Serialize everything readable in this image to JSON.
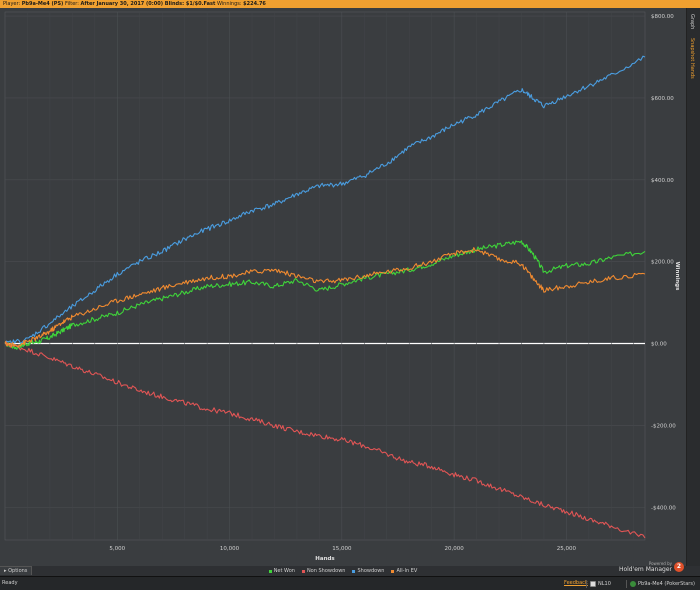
{
  "topbar": {
    "player_label": "Player:",
    "player_value": "Pb9a-Me4 (PS)",
    "filter_label": "Filter:",
    "filter_value": "After January 30, 2017 (0:00) Blinds: $1/$0.Fast",
    "winnings_label": "Winnings:",
    "winnings_value": "$224.76",
    "bar_color": "#f0a030"
  },
  "side_tabs": [
    "Graph",
    "Snapshot Hands"
  ],
  "options_label": "Options",
  "branding": {
    "small": "Powered by",
    "name": "Hold'em Manager",
    "badge": "2"
  },
  "status": {
    "ready": "Ready",
    "feedback": "Feedback",
    "limit": "NL10",
    "player": "Pb9a-Me4 (PokerStars)"
  },
  "chart_data": {
    "type": "line",
    "xlabel": "Hands",
    "ylabel": "Winnings",
    "xlim": [
      0,
      28500
    ],
    "ylim": [
      -480,
      810
    ],
    "x_ticks": [
      5000,
      10000,
      15000,
      20000,
      25000
    ],
    "x_tick_labels": [
      "5,000",
      "10,000",
      "15,000",
      "20,000",
      "25,000"
    ],
    "y_ticks": [
      800,
      600,
      400,
      200,
      0,
      -200,
      -400
    ],
    "y_tick_labels": [
      "$800.00",
      "$600.00",
      "$400.00",
      "$200.00",
      "$0.00",
      "-$200.00",
      "-$400.00"
    ],
    "grid": true,
    "legend_position": "bottom-center",
    "series": [
      {
        "name": "Net Won",
        "color": "#3fd43a",
        "x": [
          0,
          500,
          1000,
          1500,
          2000,
          2500,
          3000,
          4000,
          5000,
          6000,
          7000,
          8000,
          9000,
          10000,
          11000,
          12000,
          13000,
          14000,
          15000,
          16000,
          17000,
          18000,
          19000,
          20000,
          21000,
          22000,
          23000,
          23500,
          24000,
          25000,
          26000,
          27000,
          28500
        ],
        "y": [
          0,
          -10,
          0,
          5,
          15,
          30,
          45,
          60,
          75,
          95,
          110,
          125,
          140,
          145,
          150,
          140,
          155,
          130,
          145,
          160,
          170,
          180,
          195,
          215,
          230,
          240,
          250,
          220,
          175,
          190,
          195,
          210,
          225
        ]
      },
      {
        "name": "Non Showdown",
        "color": "#e05555",
        "x": [
          0,
          1000,
          2000,
          3000,
          4000,
          5000,
          6000,
          7000,
          8000,
          9000,
          10000,
          11000,
          12000,
          13000,
          14000,
          15000,
          16000,
          17000,
          18000,
          19000,
          20000,
          21000,
          22000,
          23000,
          24000,
          25000,
          26000,
          27000,
          28500
        ],
        "y": [
          0,
          -15,
          -35,
          -55,
          -75,
          -95,
          -115,
          -130,
          -145,
          -160,
          -170,
          -185,
          -200,
          -215,
          -225,
          -235,
          -250,
          -270,
          -290,
          -300,
          -320,
          -335,
          -355,
          -375,
          -395,
          -410,
          -430,
          -445,
          -475
        ]
      },
      {
        "name": "Showdown",
        "color": "#4a9de0",
        "x": [
          0,
          1000,
          2000,
          3000,
          4000,
          5000,
          6000,
          7000,
          8000,
          9000,
          10000,
          11000,
          12000,
          13000,
          14000,
          15000,
          16000,
          17000,
          18000,
          19000,
          20000,
          21000,
          22000,
          23000,
          23500,
          24000,
          25000,
          26000,
          27000,
          28500
        ],
        "y": [
          0,
          10,
          50,
          90,
          130,
          170,
          200,
          225,
          255,
          280,
          300,
          325,
          340,
          365,
          385,
          390,
          410,
          440,
          480,
          505,
          535,
          560,
          590,
          620,
          600,
          580,
          605,
          630,
          655,
          700
        ]
      },
      {
        "name": "All-In EV",
        "color": "#f08a30",
        "x": [
          0,
          500,
          1000,
          1500,
          2000,
          2500,
          3000,
          4000,
          5000,
          6000,
          7000,
          8000,
          9000,
          10000,
          11000,
          12000,
          13000,
          14000,
          15000,
          16000,
          17000,
          18000,
          19000,
          20000,
          21000,
          22000,
          23000,
          23500,
          24000,
          25000,
          26000,
          27000,
          28500
        ],
        "y": [
          0,
          -5,
          5,
          15,
          30,
          50,
          65,
          85,
          105,
          120,
          135,
          150,
          160,
          165,
          175,
          180,
          165,
          150,
          155,
          165,
          175,
          185,
          200,
          220,
          230,
          205,
          195,
          160,
          130,
          140,
          150,
          160,
          170
        ]
      }
    ]
  }
}
